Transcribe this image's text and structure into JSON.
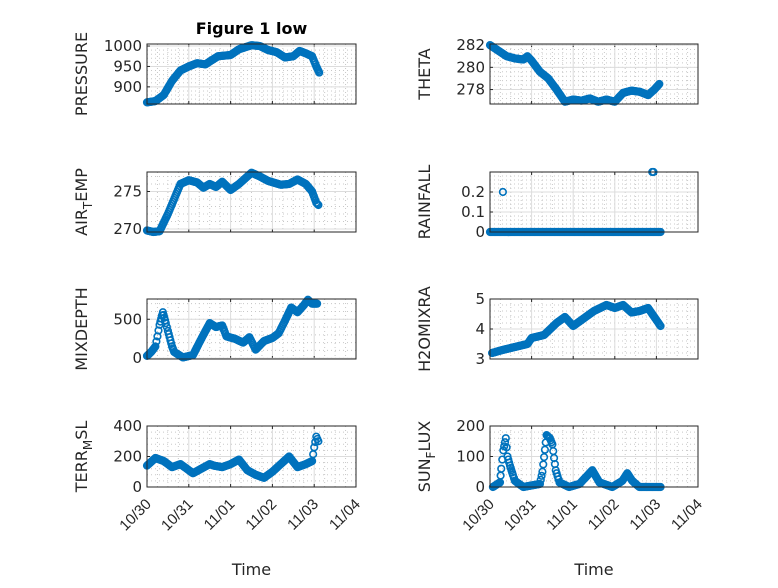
{
  "figure": {
    "title": "Figure 1 low",
    "xlabel": "Time"
  },
  "colors": {
    "marker": "#0072BD",
    "axis": "#262626",
    "grid": "#dcdcdc",
    "minor_grid": "#c8c8c8"
  },
  "chart_data": [
    {
      "type": "scatter",
      "name": "PRESSURE",
      "ylabel": "PRESSURE",
      "title": "Figure 1 low",
      "xlim": [
        0,
        5
      ],
      "ylim": [
        858,
        1005
      ],
      "yticks": [
        900,
        950,
        1000
      ],
      "xticks": [
        "10/30",
        "10/31",
        "11/01",
        "11/02",
        "11/03",
        "11/04"
      ],
      "x_unit": "days since 10/30",
      "keypoints": [
        [
          0,
          862
        ],
        [
          0.2,
          865
        ],
        [
          0.4,
          880
        ],
        [
          0.6,
          915
        ],
        [
          0.8,
          940
        ],
        [
          1.0,
          950
        ],
        [
          1.2,
          958
        ],
        [
          1.4,
          955
        ],
        [
          1.5,
          962
        ],
        [
          1.7,
          975
        ],
        [
          2.0,
          978
        ],
        [
          2.2,
          992
        ],
        [
          2.5,
          1002
        ],
        [
          2.7,
          1000
        ],
        [
          2.9,
          990
        ],
        [
          3.1,
          985
        ],
        [
          3.3,
          972
        ],
        [
          3.5,
          975
        ],
        [
          3.65,
          988
        ],
        [
          3.8,
          982
        ],
        [
          3.95,
          975
        ],
        [
          4.05,
          950
        ],
        [
          4.12,
          935
        ]
      ]
    },
    {
      "type": "scatter",
      "name": "THETA",
      "ylabel": "THETA",
      "xlim": [
        0,
        5
      ],
      "ylim": [
        276.7,
        282.1
      ],
      "yticks": [
        278,
        280,
        282
      ],
      "xticks": [
        "10/30",
        "10/31",
        "11/01",
        "11/02",
        "11/03",
        "11/04"
      ],
      "keypoints": [
        [
          0,
          282
        ],
        [
          0.2,
          281.5
        ],
        [
          0.4,
          281
        ],
        [
          0.6,
          280.8
        ],
        [
          0.8,
          280.7
        ],
        [
          0.9,
          281
        ],
        [
          1.0,
          280.6
        ],
        [
          1.2,
          279.6
        ],
        [
          1.4,
          279
        ],
        [
          1.6,
          278
        ],
        [
          1.8,
          276.9
        ],
        [
          2.0,
          277.1
        ],
        [
          2.2,
          277
        ],
        [
          2.4,
          277.2
        ],
        [
          2.6,
          276.9
        ],
        [
          2.8,
          277.1
        ],
        [
          3.0,
          276.9
        ],
        [
          3.2,
          277.7
        ],
        [
          3.4,
          277.9
        ],
        [
          3.6,
          277.8
        ],
        [
          3.8,
          277.5
        ],
        [
          3.95,
          278
        ],
        [
          4.07,
          278.5
        ]
      ]
    },
    {
      "type": "scatter",
      "name": "AIR_TEMP",
      "ylabel": "AIR_TEMP",
      "xlim": [
        0,
        5
      ],
      "ylim": [
        269.6,
        277.6
      ],
      "yticks": [
        270,
        275
      ],
      "xticks": [
        "10/30",
        "10/31",
        "11/01",
        "11/02",
        "11/03",
        "11/04"
      ],
      "keypoints": [
        [
          0,
          269.8
        ],
        [
          0.15,
          269.6
        ],
        [
          0.3,
          269.7
        ],
        [
          0.5,
          272
        ],
        [
          0.8,
          276
        ],
        [
          1.0,
          276.5
        ],
        [
          1.2,
          276.2
        ],
        [
          1.35,
          275.5
        ],
        [
          1.5,
          276
        ],
        [
          1.65,
          275.6
        ],
        [
          1.8,
          276.3
        ],
        [
          2.0,
          275.2
        ],
        [
          2.2,
          276
        ],
        [
          2.5,
          277.5
        ],
        [
          2.7,
          277
        ],
        [
          2.9,
          276.4
        ],
        [
          3.2,
          275.9
        ],
        [
          3.4,
          276
        ],
        [
          3.6,
          276.6
        ],
        [
          3.8,
          276
        ],
        [
          3.95,
          275
        ],
        [
          4.05,
          273.5
        ],
        [
          4.1,
          273.2
        ]
      ]
    },
    {
      "type": "scatter",
      "name": "RAINFALL",
      "ylabel": "RAINFALL",
      "xlim": [
        0,
        5
      ],
      "ylim": [
        0,
        0.3
      ],
      "yticks": [
        0,
        0.1,
        0.2
      ],
      "xticks": [
        "10/30",
        "10/31",
        "11/01",
        "11/02",
        "11/03",
        "11/04"
      ],
      "keypoints": [
        [
          0,
          0
        ],
        [
          4.1,
          0
        ]
      ],
      "extra_points": [
        [
          0.31,
          0.2
        ],
        [
          3.9,
          0.3
        ],
        [
          3.93,
          0.3
        ]
      ]
    },
    {
      "type": "scatter",
      "name": "MIXDEPTH",
      "ylabel": "MIXDEPTH",
      "xlim": [
        0,
        5
      ],
      "ylim": [
        -10,
        760
      ],
      "yticks": [
        0,
        500
      ],
      "xticks": [
        "10/30",
        "10/31",
        "11/01",
        "11/02",
        "11/03",
        "11/04"
      ],
      "keypoints": [
        [
          0,
          30
        ],
        [
          0.1,
          80
        ],
        [
          0.2,
          150
        ],
        [
          0.25,
          280
        ],
        [
          0.3,
          430
        ],
        [
          0.38,
          590
        ],
        [
          0.45,
          450
        ],
        [
          0.5,
          350
        ],
        [
          0.6,
          150
        ],
        [
          0.65,
          80
        ],
        [
          0.86,
          10
        ],
        [
          1.1,
          40
        ],
        [
          1.3,
          250
        ],
        [
          1.5,
          450
        ],
        [
          1.65,
          400
        ],
        [
          1.8,
          420
        ],
        [
          1.9,
          280
        ],
        [
          2.1,
          250
        ],
        [
          2.3,
          200
        ],
        [
          2.45,
          270
        ],
        [
          2.6,
          110
        ],
        [
          2.8,
          220
        ],
        [
          3.0,
          260
        ],
        [
          3.15,
          320
        ],
        [
          3.3,
          480
        ],
        [
          3.45,
          650
        ],
        [
          3.6,
          590
        ],
        [
          3.75,
          680
        ],
        [
          3.85,
          750
        ],
        [
          3.95,
          700
        ],
        [
          4.07,
          700
        ]
      ]
    },
    {
      "type": "scatter",
      "name": "H2OMIXRA",
      "ylabel": "H2OMIXRA",
      "xlim": [
        0,
        5
      ],
      "ylim": [
        3,
        5
      ],
      "yticks": [
        3,
        4,
        5
      ],
      "xticks": [
        "10/30",
        "10/31",
        "11/01",
        "11/02",
        "11/03",
        "11/04"
      ],
      "keypoints": [
        [
          0.05,
          3.2
        ],
        [
          0.3,
          3.3
        ],
        [
          0.6,
          3.4
        ],
        [
          0.9,
          3.5
        ],
        [
          1.0,
          3.7
        ],
        [
          1.3,
          3.8
        ],
        [
          1.6,
          4.2
        ],
        [
          1.8,
          4.4
        ],
        [
          2.0,
          4.1
        ],
        [
          2.2,
          4.3
        ],
        [
          2.5,
          4.6
        ],
        [
          2.8,
          4.8
        ],
        [
          3.0,
          4.7
        ],
        [
          3.2,
          4.8
        ],
        [
          3.4,
          4.55
        ],
        [
          3.6,
          4.6
        ],
        [
          3.8,
          4.7
        ],
        [
          3.95,
          4.4
        ],
        [
          4.1,
          4.1
        ]
      ]
    },
    {
      "type": "scatter",
      "name": "TERR_MSL",
      "ylabel": "TERR_MSL",
      "xlim": [
        0,
        5
      ],
      "ylim": [
        0,
        400
      ],
      "yticks": [
        0,
        200,
        400
      ],
      "xticks": [
        "10/30",
        "10/31",
        "11/01",
        "11/02",
        "11/03",
        "11/04"
      ],
      "keypoints": [
        [
          0,
          140
        ],
        [
          0.2,
          190
        ],
        [
          0.4,
          170
        ],
        [
          0.6,
          130
        ],
        [
          0.8,
          150
        ],
        [
          1.0,
          110
        ],
        [
          1.1,
          90
        ],
        [
          1.3,
          120
        ],
        [
          1.5,
          150
        ],
        [
          1.6,
          140
        ],
        [
          1.8,
          130
        ],
        [
          2.0,
          150
        ],
        [
          2.2,
          180
        ],
        [
          2.4,
          110
        ],
        [
          2.6,
          80
        ],
        [
          2.8,
          60
        ],
        [
          3.0,
          100
        ],
        [
          3.2,
          150
        ],
        [
          3.4,
          200
        ],
        [
          3.6,
          130
        ],
        [
          3.8,
          150
        ],
        [
          3.95,
          170
        ],
        [
          4.0,
          260
        ],
        [
          4.05,
          330
        ],
        [
          4.1,
          300
        ]
      ]
    },
    {
      "type": "scatter",
      "name": "SUN_FLUX",
      "ylabel": "SUN_FLUX",
      "xlim": [
        0,
        5
      ],
      "ylim": [
        0,
        200
      ],
      "yticks": [
        0,
        100,
        200
      ],
      "xticks": [
        "10/30",
        "10/31",
        "11/01",
        "11/02",
        "11/03",
        "11/04"
      ],
      "keypoints": [
        [
          0.07,
          0
        ],
        [
          0.24,
          15
        ],
        [
          0.27,
          60
        ],
        [
          0.32,
          120
        ],
        [
          0.38,
          160
        ],
        [
          0.42,
          100
        ],
        [
          0.48,
          70
        ],
        [
          0.55,
          40
        ],
        [
          0.6,
          20
        ],
        [
          0.8,
          0
        ],
        [
          1.2,
          10
        ],
        [
          1.26,
          50
        ],
        [
          1.36,
          170
        ],
        [
          1.44,
          160
        ],
        [
          1.5,
          140
        ],
        [
          1.54,
          95
        ],
        [
          1.58,
          55
        ],
        [
          1.67,
          15
        ],
        [
          1.9,
          0
        ],
        [
          2.15,
          10
        ],
        [
          2.46,
          55
        ],
        [
          2.63,
          15
        ],
        [
          2.94,
          0
        ],
        [
          3.18,
          20
        ],
        [
          3.3,
          45
        ],
        [
          3.42,
          20
        ],
        [
          3.59,
          0
        ],
        [
          4.1,
          0
        ]
      ]
    }
  ]
}
